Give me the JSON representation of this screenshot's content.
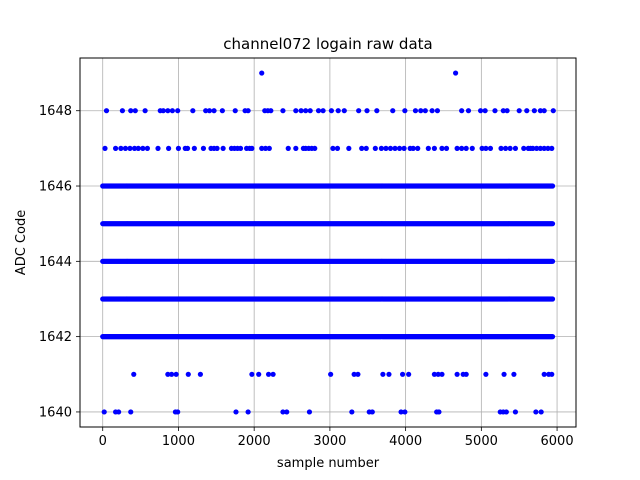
{
  "chart_data": {
    "type": "scatter",
    "title": "channel072 logain raw data",
    "xlabel": "sample number",
    "ylabel": "ADC Code",
    "xlim": [
      -300,
      6250
    ],
    "ylim": [
      1639.6,
      1649.4
    ],
    "xticks": [
      0,
      1000,
      2000,
      3000,
      4000,
      5000,
      6000
    ],
    "yticks": [
      1640,
      1642,
      1644,
      1646,
      1648
    ],
    "grid": true,
    "marker_color": "#0000ff",
    "total_samples": 5940,
    "dense_levels": [
      1642,
      1643,
      1644,
      1645,
      1646
    ],
    "sparse_points": [
      {
        "y": 1649,
        "x": [
          2100,
          4660
        ]
      },
      {
        "y": 1648,
        "x": [
          50,
          260,
          370,
          430,
          560,
          760,
          800,
          860,
          920,
          990,
          1190,
          1360,
          1410,
          1470,
          1580,
          1750,
          1880,
          1920,
          2140,
          2180,
          2220,
          2380,
          2550,
          2620,
          2680,
          2740,
          2850,
          2910,
          3020,
          3110,
          3190,
          3380,
          3490,
          3620,
          3830,
          3990,
          4130,
          4200,
          4260,
          4350,
          4420,
          4740,
          4830,
          4990,
          5050,
          5180,
          5290,
          5340,
          5500,
          5600,
          5700,
          5780,
          5830,
          5950
        ]
      },
      {
        "y": 1647,
        "x": [
          30,
          170,
          240,
          300,
          360,
          420,
          470,
          530,
          590,
          730,
          870,
          1000,
          1090,
          1120,
          1210,
          1330,
          1430,
          1470,
          1510,
          1590,
          1700,
          1740,
          1780,
          1820,
          1900,
          1940,
          1970,
          2100,
          2150,
          2200,
          2450,
          2550,
          2650,
          2680,
          2720,
          2760,
          2800,
          3040,
          3100,
          3250,
          3420,
          3480,
          3600,
          3680,
          3740,
          3800,
          3860,
          3920,
          3980,
          4060,
          4100,
          4160,
          4300,
          4380,
          4480,
          4540,
          4680,
          4740,
          4800,
          4880,
          5010,
          5060,
          5120,
          5260,
          5320,
          5380,
          5450,
          5560,
          5620,
          5650,
          5680,
          5730,
          5780,
          5830,
          5880,
          5930
        ]
      },
      {
        "y": 1641,
        "x": [
          410,
          860,
          910,
          970,
          1130,
          1290,
          1970,
          2060,
          2190,
          2250,
          3010,
          3320,
          3370,
          3700,
          3780,
          3960,
          4040,
          4380,
          4430,
          4480,
          4680,
          4760,
          4800,
          5060,
          5300,
          5430,
          5830,
          5890,
          5930
        ]
      },
      {
        "y": 1640,
        "x": [
          20,
          170,
          210,
          370,
          960,
          990,
          1760,
          1920,
          2380,
          2430,
          2730,
          3290,
          3520,
          3560,
          3940,
          3990,
          4410,
          4440,
          5250,
          5290,
          5330,
          5450,
          5720,
          5790
        ]
      }
    ]
  }
}
